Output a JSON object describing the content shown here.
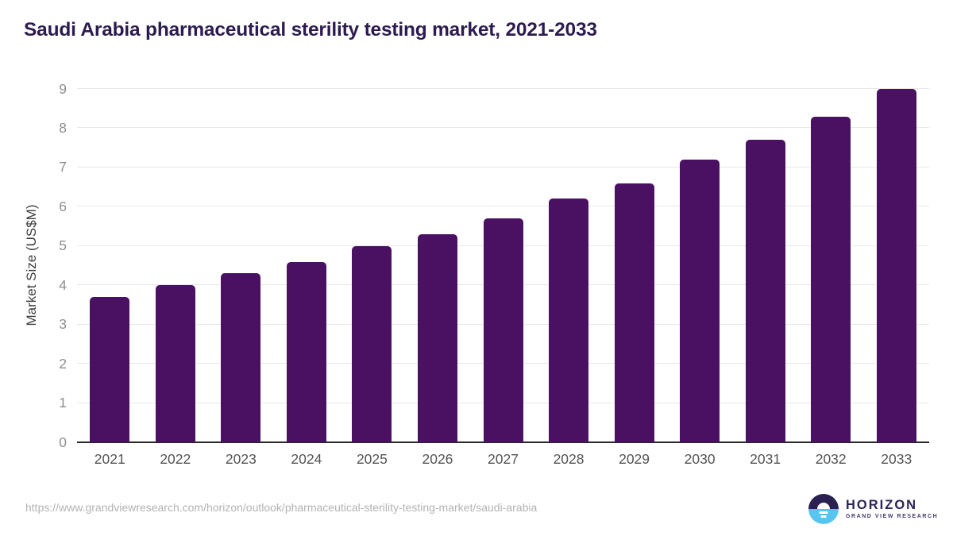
{
  "title": "Saudi Arabia pharmaceutical sterility testing market, 2021-2033",
  "chart_data": {
    "type": "bar",
    "title": "Saudi Arabia pharmaceutical sterility testing market, 2021-2033",
    "categories": [
      "2021",
      "2022",
      "2023",
      "2024",
      "2025",
      "2026",
      "2027",
      "2028",
      "2029",
      "2030",
      "2031",
      "2032",
      "2033"
    ],
    "values": [
      3.7,
      4.0,
      4.3,
      4.6,
      5.0,
      5.3,
      5.7,
      6.2,
      6.6,
      7.2,
      7.7,
      8.3,
      9.0
    ],
    "xlabel": "",
    "ylabel": "Market Size (US$M)",
    "ylim": [
      0,
      9
    ],
    "yticks": [
      0,
      1,
      2,
      3,
      4,
      5,
      6,
      7,
      8,
      9
    ],
    "grid": true,
    "legend": "none",
    "bar_color": "#4a1162"
  },
  "colors": {
    "title_text": "#2d1b4f",
    "bar": "#4a1162",
    "gridline": "#e8e8e8",
    "axis_line": "#26262b",
    "brand_purple": "#2e2356",
    "brand_blue": "#56c5f0"
  },
  "footer": {
    "source_url": "https://www.grandviewresearch.com/horizon/outlook/pharmaceutical-sterility-testing-market/saudi-arabia",
    "logo": {
      "name": "HORIZON",
      "subtitle": "GRAND VIEW RESEARCH"
    }
  }
}
